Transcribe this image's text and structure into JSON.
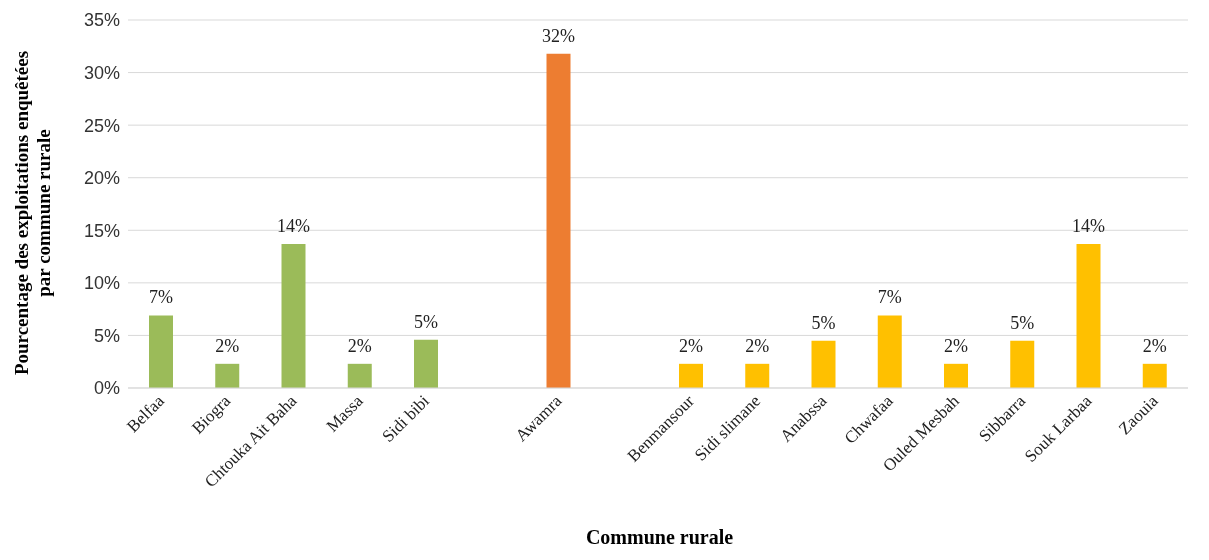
{
  "chart_data": {
    "type": "bar",
    "xlabel": "Commune rurale",
    "ylabel": "Pourcentage des exploitations enquêtées par commune rurale",
    "categories": [
      "Belfaa",
      "Biogra",
      "Chtouka Ait Baha",
      "Massa",
      "Sidi bibi",
      null,
      "Awamra",
      null,
      "Benmansour",
      "Sidi slimane",
      "Anabssa",
      "Chwafaa",
      "Ouled Mesbah",
      "Sibbarra",
      "Souk Larbaa",
      "Zaouia"
    ],
    "values": [
      6.9,
      2.3,
      13.7,
      2.3,
      4.6,
      null,
      31.8,
      null,
      2.3,
      2.3,
      4.5,
      6.9,
      2.3,
      4.5,
      13.7,
      2.3
    ],
    "value_labels": [
      "7%",
      "2%",
      "14%",
      "2%",
      "5%",
      null,
      "32%",
      null,
      "2%",
      "2%",
      "5%",
      "7%",
      "2%",
      "5%",
      "14%",
      "2%"
    ],
    "colors": [
      "#9bbb59",
      "#9bbb59",
      "#9bbb59",
      "#9bbb59",
      "#9bbb59",
      null,
      "#ed7d31",
      null,
      "#ffc000",
      "#ffc000",
      "#ffc000",
      "#ffc000",
      "#ffc000",
      "#ffc000",
      "#ffc000",
      "#ffc000"
    ],
    "ylim": [
      0,
      35
    ],
    "yticks": [
      {
        "value": 0,
        "label": "0%"
      },
      {
        "value": 5,
        "label": "5%"
      },
      {
        "value": 10,
        "label": "10%"
      },
      {
        "value": 15,
        "label": "15%"
      },
      {
        "value": 20,
        "label": "20%"
      },
      {
        "value": 25,
        "label": "25%"
      },
      {
        "value": 30,
        "label": "30%"
      },
      {
        "value": 35,
        "label": "35%"
      }
    ],
    "grid": "y",
    "legend": false
  }
}
